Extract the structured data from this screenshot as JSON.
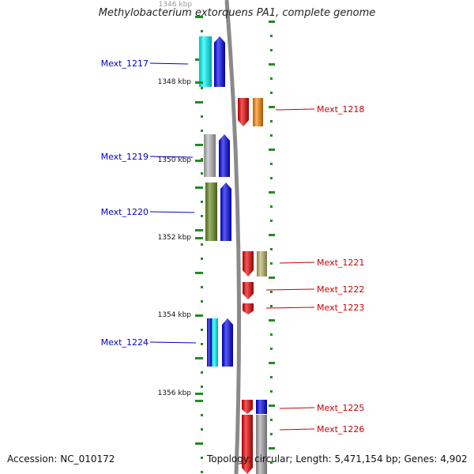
{
  "title": "Methylobacterium extorquens PA1, complete genome",
  "top_tick_label": "1346 kbp",
  "accession": "Accession: NC_010172",
  "topology": "Topology: circular; Length: 5,471,154 bp; Genes: 4,902",
  "colors": {
    "left_label": "#0000cc",
    "right_label": "#cc0000",
    "backbone": "#8a8a8a",
    "ticks": "#228b22"
  },
  "kbp_ticks": [
    {
      "label": "1348 kbp"
    },
    {
      "label": "1350 kbp"
    },
    {
      "label": "1352 kbp"
    },
    {
      "label": "1354 kbp"
    },
    {
      "label": "1356 kbp"
    }
  ],
  "genes": [
    {
      "name": "Mext_1217",
      "side": "left",
      "colors": [
        "#00ffff",
        "#0000ee"
      ]
    },
    {
      "name": "Mext_1218",
      "side": "right",
      "colors": [
        "#ee0000",
        "#ff8800"
      ]
    },
    {
      "name": "Mext_1219",
      "side": "left",
      "colors": [
        "#bbbbbb",
        "#0000ee"
      ]
    },
    {
      "name": "Mext_1220",
      "side": "left",
      "colors": [
        "#6b8e23",
        "#0000ee"
      ]
    },
    {
      "name": "Mext_1221",
      "side": "right",
      "colors": [
        "#ee0000",
        "#bdb76b"
      ]
    },
    {
      "name": "Mext_1222",
      "side": "right",
      "colors": [
        "#ee0000"
      ]
    },
    {
      "name": "Mext_1223",
      "side": "right",
      "colors": [
        "#ee0000"
      ]
    },
    {
      "name": "Mext_1224",
      "side": "left",
      "colors": [
        "#0000ee",
        "#00ffff",
        "#0000ee"
      ]
    },
    {
      "name": "Mext_1225",
      "side": "right",
      "colors": [
        "#ee0000",
        "#0000ee"
      ]
    },
    {
      "name": "Mext_1226",
      "side": "right",
      "colors": [
        "#ee0000",
        "#aaaaaa"
      ]
    }
  ]
}
